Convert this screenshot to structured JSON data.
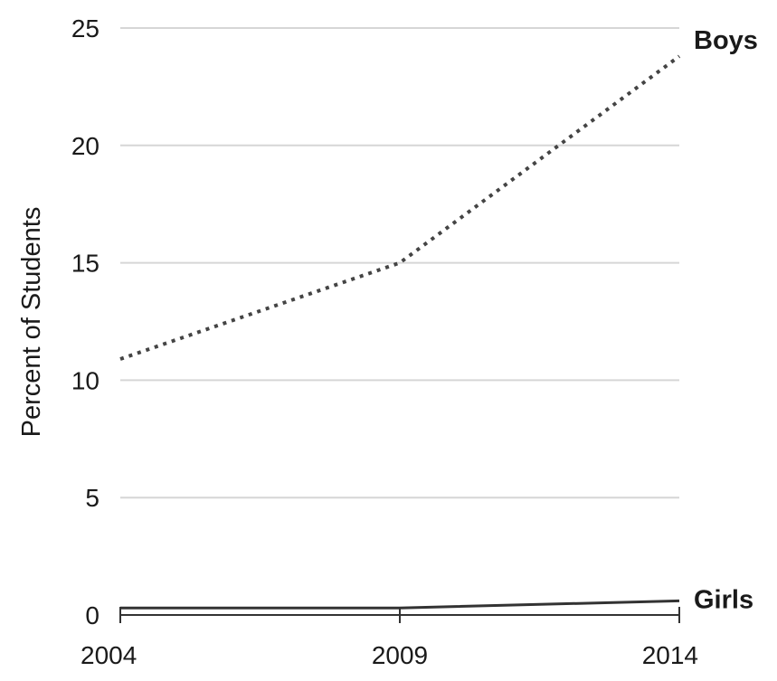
{
  "chart_data": {
    "type": "line",
    "title": "",
    "xlabel": "",
    "ylabel": "Percent of Students",
    "x": [
      2004,
      2009,
      2014
    ],
    "x_tick_labels": [
      "2004",
      "2009",
      "2014"
    ],
    "y_ticks": [
      0,
      5,
      10,
      15,
      20,
      25
    ],
    "y_tick_labels": [
      "0",
      "5",
      "10",
      "15",
      "20",
      "25"
    ],
    "ylim": [
      0,
      25
    ],
    "grid": true,
    "legend": "direct labels at line ends",
    "series": [
      {
        "name": "Boys",
        "values": [
          10.9,
          15.0,
          23.8
        ],
        "style": "dotted",
        "color": "#444444"
      },
      {
        "name": "Girls",
        "values": [
          0.3,
          0.3,
          0.6
        ],
        "style": "solid",
        "color": "#333333"
      }
    ]
  }
}
